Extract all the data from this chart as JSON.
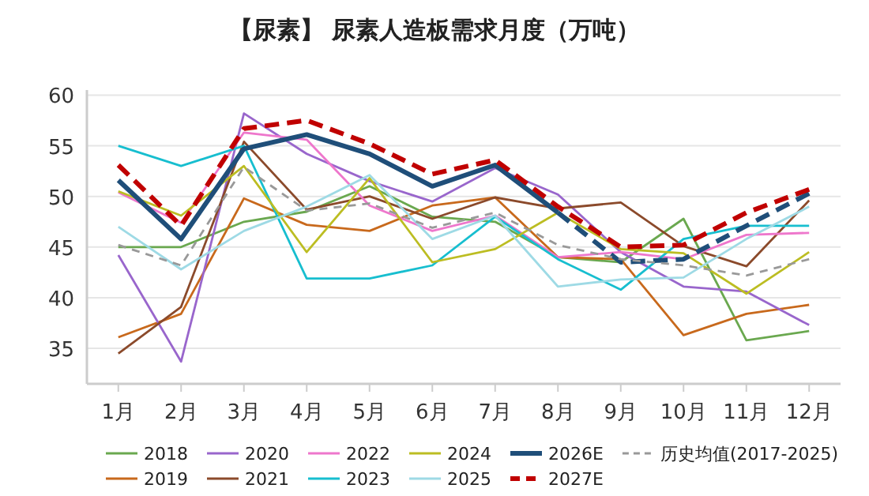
{
  "chart_data": {
    "type": "line",
    "title": "【尿素】 尿素人造板需求月度（万吨）",
    "categories": [
      "1月",
      "2月",
      "3月",
      "4月",
      "5月",
      "6月",
      "7月",
      "8月",
      "9月",
      "10月",
      "11月",
      "12月"
    ],
    "ylim": [
      31.5,
      60.5
    ],
    "yticks": [
      35,
      40,
      45,
      50,
      55,
      60
    ],
    "grid": "y",
    "legend": "bottom",
    "marker": "none",
    "series": [
      {
        "name": "2018",
        "color": "#6aa84f",
        "values": [
          45.0,
          45.0,
          47.5,
          48.5,
          51.0,
          48.0,
          47.5,
          44.0,
          43.5,
          47.8,
          35.8,
          36.7
        ]
      },
      {
        "name": "2019",
        "color": "#c8691c",
        "values": [
          36.1,
          38.4,
          49.8,
          47.2,
          46.6,
          49.1,
          49.9,
          44.0,
          43.8,
          36.3,
          38.4,
          39.3
        ]
      },
      {
        "name": "2020",
        "color": "#9966cc",
        "values": [
          44.2,
          33.7,
          58.2,
          54.2,
          51.5,
          49.5,
          52.8,
          50.2,
          44.5,
          41.1,
          40.6,
          37.3
        ]
      },
      {
        "name": "2021",
        "color": "#8b4a2b",
        "values": [
          34.5,
          39.1,
          55.4,
          48.7,
          50.0,
          47.8,
          49.9,
          48.8,
          49.4,
          45.1,
          43.1,
          49.6
        ]
      },
      {
        "name": "2022",
        "color": "#ee77cc",
        "values": [
          50.4,
          47.4,
          56.3,
          55.6,
          49.1,
          46.6,
          48.1,
          44.0,
          44.5,
          43.8,
          46.2,
          46.4
        ]
      },
      {
        "name": "2023",
        "color": "#17becf",
        "values": [
          55.0,
          53.0,
          55.0,
          41.9,
          41.9,
          43.2,
          48.0,
          43.8,
          40.8,
          45.8,
          47.1,
          47.1
        ]
      },
      {
        "name": "2024",
        "color": "#bcbd22",
        "values": [
          50.5,
          48.1,
          53.0,
          44.5,
          51.8,
          43.5,
          44.8,
          48.4,
          44.8,
          44.4,
          40.4,
          44.5
        ]
      },
      {
        "name": "2025",
        "color": "#9edae5",
        "values": [
          47.0,
          42.8,
          46.6,
          49.0,
          52.1,
          45.8,
          48.1,
          41.1,
          41.8,
          42.0,
          45.8,
          49.0
        ]
      },
      {
        "name": "2026E",
        "color": "#1f4e79",
        "line_style": "solid",
        "values": [
          51.6,
          45.8,
          54.7,
          56.1,
          54.2,
          51.0,
          53.1,
          48.4,
          null,
          null,
          null,
          null
        ]
      },
      {
        "color": "#1f4e79",
        "line_style": "dashed",
        "values": [
          null,
          null,
          null,
          null,
          null,
          null,
          null,
          48.4,
          43.5,
          43.8,
          47.1,
          50.3
        ]
      },
      {
        "name": "2027E",
        "color": "#c00000",
        "line_style": "dashed",
        "values": [
          53.1,
          47.1,
          56.7,
          57.5,
          55.2,
          52.2,
          53.6,
          49.0,
          45.0,
          45.2,
          48.4,
          50.7
        ]
      },
      {
        "name": "历史均值(2017-2025)",
        "color": "#999999",
        "line_style": "dashed",
        "values": [
          45.2,
          43.2,
          52.9,
          48.6,
          49.3,
          46.9,
          48.4,
          45.2,
          43.8,
          43.2,
          42.2,
          43.8
        ]
      }
    ]
  }
}
